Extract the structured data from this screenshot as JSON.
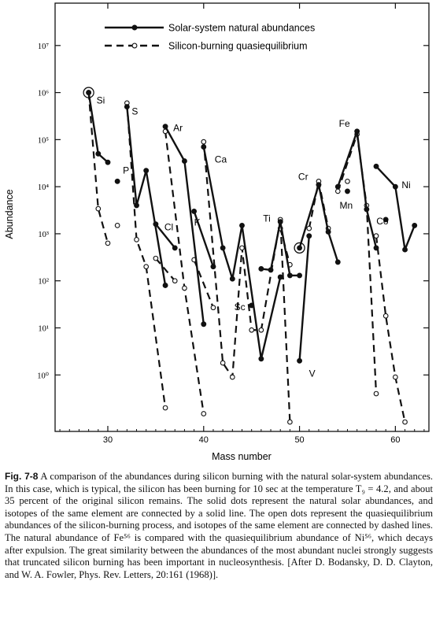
{
  "chart_data": {
    "type": "line",
    "title": "",
    "xlabel": "Mass number",
    "ylabel": "Abundance",
    "xlim": [
      24.5,
      63.5
    ],
    "ylim_log10": [
      -1.2,
      7.9
    ],
    "log_y": true,
    "x_ticks": [
      30,
      40,
      50,
      60
    ],
    "x_tick_labels": [
      "30",
      "40",
      "50",
      "60"
    ],
    "y_ticks": [
      0,
      1,
      2,
      3,
      4,
      5,
      6,
      7
    ],
    "y_tick_labels": [
      "10⁰",
      "10¹",
      "10²",
      "10³",
      "10⁴",
      "10⁵",
      "10⁶",
      "10⁷"
    ],
    "legend": [
      {
        "label": "Solar-system natural abundances",
        "style": "solid"
      },
      {
        "label": "Silicon-burning quasiequilibrium",
        "style": "dashed"
      }
    ],
    "legend_position": "top",
    "solar_segments": [
      {
        "element": "Si",
        "points": [
          [
            28,
            1000000
          ],
          [
            29,
            50000
          ],
          [
            30,
            33000
          ]
        ]
      },
      {
        "element": "S",
        "points": [
          [
            32,
            500000
          ],
          [
            33,
            4000
          ],
          [
            34,
            22000
          ],
          [
            36,
            80
          ]
        ]
      },
      {
        "element": "Cl",
        "points": [
          [
            35,
            1600
          ],
          [
            37,
            500
          ]
        ]
      },
      {
        "element": "Ar",
        "points": [
          [
            36,
            190000
          ],
          [
            38,
            35000
          ],
          [
            40,
            12
          ]
        ]
      },
      {
        "element": "K",
        "points": [
          [
            39,
            3000
          ],
          [
            41,
            200
          ]
        ]
      },
      {
        "element": "Ca",
        "points": [
          [
            40,
            70000
          ],
          [
            42,
            500
          ],
          [
            43,
            110
          ],
          [
            44,
            1500
          ],
          [
            46,
            2.2
          ],
          [
            48,
            120
          ]
        ]
      },
      {
        "element": "Sc",
        "points": [
          [
            45,
            30
          ]
        ]
      },
      {
        "element": "Ti",
        "points": [
          [
            46,
            180
          ],
          [
            47,
            170
          ],
          [
            48,
            1800
          ],
          [
            49,
            130
          ],
          [
            50,
            130
          ]
        ]
      },
      {
        "element": "V",
        "points": [
          [
            50,
            2
          ],
          [
            51,
            900
          ]
        ]
      },
      {
        "element": "Cr",
        "points": [
          [
            50,
            500
          ],
          [
            52,
            11000
          ],
          [
            53,
            1100
          ],
          [
            54,
            250
          ]
        ]
      },
      {
        "element": "Mn",
        "points": [
          [
            55,
            8000
          ]
        ]
      },
      {
        "element": "Fe",
        "points": [
          [
            54,
            10000
          ],
          [
            56,
            150000
          ],
          [
            57,
            3300
          ],
          [
            58,
            500
          ]
        ]
      },
      {
        "element": "Co",
        "points": [
          [
            59,
            2000
          ]
        ]
      },
      {
        "element": "Ni",
        "points": [
          [
            58,
            27000
          ],
          [
            60,
            10000
          ],
          [
            61,
            460
          ],
          [
            62,
            1500
          ]
        ]
      },
      {
        "element": "P",
        "points": [
          [
            31,
            13000
          ]
        ]
      }
    ],
    "silicon_burning_segments": [
      {
        "element": "Si",
        "points": [
          [
            28,
            1000000
          ],
          [
            29,
            3400
          ],
          [
            30,
            630
          ]
        ]
      },
      {
        "element": "S",
        "points": [
          [
            32,
            600000
          ],
          [
            33,
            750
          ],
          [
            34,
            200
          ],
          [
            36,
            0.2
          ]
        ]
      },
      {
        "element": "Cl",
        "points": [
          [
            35,
            300
          ],
          [
            37,
            100
          ]
        ]
      },
      {
        "element": "Ar",
        "points": [
          [
            36,
            150000
          ],
          [
            38,
            70
          ],
          [
            40,
            0.15
          ]
        ]
      },
      {
        "element": "K",
        "points": [
          [
            39,
            280
          ],
          [
            41,
            27
          ]
        ]
      },
      {
        "element": "Ca",
        "points": [
          [
            40,
            90000
          ],
          [
            42,
            1.8
          ],
          [
            43,
            0.9
          ],
          [
            44,
            500
          ],
          [
            45,
            9
          ],
          [
            46,
            9
          ],
          [
            48,
            2000
          ],
          [
            49,
            0.1
          ]
        ]
      },
      {
        "element": "Ti",
        "points": [
          [
            48,
            1300
          ],
          [
            49,
            220
          ]
        ]
      },
      {
        "element": "Cr",
        "points": [
          [
            51,
            1300
          ],
          [
            52,
            13000
          ],
          [
            53,
            1300
          ]
        ]
      },
      {
        "element": "Mn",
        "points": [
          [
            55,
            13000
          ]
        ]
      },
      {
        "element": "Fe",
        "points": [
          [
            54,
            8000
          ],
          [
            56,
            130000
          ],
          [
            57,
            4000
          ],
          [
            58,
            0.4
          ]
        ]
      },
      {
        "element": "Ni",
        "points": [
          [
            58,
            900
          ],
          [
            59,
            18
          ],
          [
            60,
            0.9
          ],
          [
            61,
            0.1
          ]
        ]
      },
      {
        "element": "P",
        "points": [
          [
            31,
            1500
          ]
        ]
      }
    ],
    "circled_points": [
      [
        28,
        1000000
      ],
      [
        50,
        500
      ]
    ],
    "element_labels": [
      {
        "text": "Si",
        "x": 28,
        "y": 1000000
      },
      {
        "text": "P",
        "x": 31,
        "y": 13000
      },
      {
        "text": "S",
        "x": 32,
        "y": 500000
      },
      {
        "text": "Cl",
        "x": 35,
        "y": 1600
      },
      {
        "text": "Ar",
        "x": 36,
        "y": 190000
      },
      {
        "text": "Ca",
        "x": 40,
        "y": 70000
      },
      {
        "text": "K",
        "x": 39,
        "y": 3000
      },
      {
        "text": "Sc",
        "x": 45,
        "y": 30
      },
      {
        "text": "Ti",
        "x": 48,
        "y": 1800
      },
      {
        "text": "V",
        "x": 50,
        "y": 2
      },
      {
        "text": "Cr",
        "x": 52,
        "y": 11000
      },
      {
        "text": "Fe",
        "x": 56,
        "y": 150000
      },
      {
        "text": "Mn",
        "x": 55,
        "y": 8000
      },
      {
        "text": "Co",
        "x": 59,
        "y": 2000
      },
      {
        "text": "Ni",
        "x": 60,
        "y": 10000
      }
    ]
  },
  "caption": {
    "figure_label": "Fig. 7-8",
    "text": "A comparison of the abundances during silicon burning with the natural solar-system abundances. In this case, which is typical, the silicon has been burning for 10 sec at the temperature T₉ = 4.2, and about 35 percent of the original silicon remains. The solid dots represent the natural solar abundances, and isotopes of the same element are connected by a solid line. The open dots represent the quasiequilibrium abundances of the silicon-burning process, and isotopes of the same element are connected by dashed lines. The natural abundance of Fe⁵⁶ is compared with the quasiequilibrium abundance of Ni⁵⁶, which decays after expulsion. The great similarity between the abundances of the most abundant nuclei strongly suggests that truncated silicon burning has been important in nucleosynthesis. [After D. Bodansky, D. D. Clayton, and W. A. Fowler, Phys. Rev. Letters, 20:161 (1968)]."
  }
}
